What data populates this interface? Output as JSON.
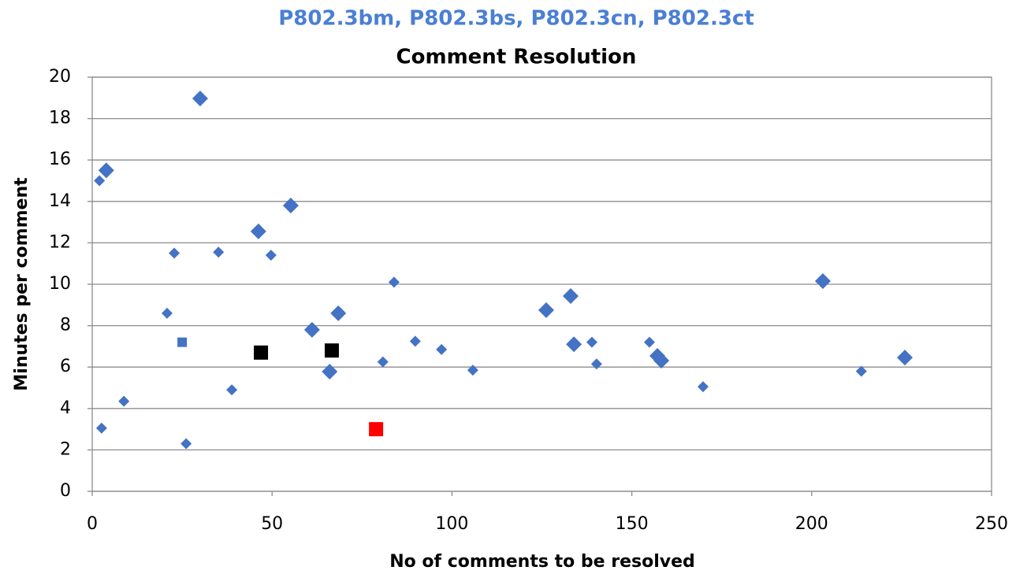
{
  "chart_data": {
    "type": "scatter",
    "supertitle": "P802.3bm, P802.3bs, P802.3cn, P802.3ct",
    "supertitle_color": "#4a7fd4",
    "title": "Comment Resolution",
    "xlabel": "No of comments to be resolved",
    "ylabel": "Minutes per comment",
    "xlim": [
      0,
      250
    ],
    "xticks": [
      0,
      50,
      100,
      150,
      200,
      250
    ],
    "ylim": [
      0,
      20
    ],
    "yticks": [
      0,
      2,
      4,
      6,
      8,
      10,
      12,
      14,
      16,
      18,
      20
    ],
    "grid": true,
    "series": [
      {
        "color": "#4472c4",
        "marker": "diamond",
        "marker_size": 10,
        "x": [
          30.0,
          3.9,
          55.2,
          46.2,
          61.1,
          68.4,
          66.0,
          126.2,
          133.0,
          133.9,
          157.1,
          158.2,
          203.1,
          225.9
        ],
        "values": [
          18.97,
          15.5,
          13.8,
          12.55,
          7.8,
          8.6,
          5.78,
          8.75,
          9.43,
          7.1,
          6.54,
          6.31,
          10.15,
          6.46
        ]
      },
      {
        "color": "#4472c4",
        "marker": "diamond",
        "marker_size": 7,
        "x": [
          2.0,
          22.8,
          35.1,
          49.7,
          83.9,
          20.8,
          89.8,
          97.1,
          80.8,
          105.8,
          138.9,
          154.9,
          140.2,
          169.8,
          213.8,
          38.8,
          8.8,
          2.6,
          26.1
        ],
        "values": [
          15.0,
          11.5,
          11.55,
          11.4,
          10.1,
          8.6,
          7.25,
          6.85,
          6.25,
          5.85,
          7.2,
          7.2,
          6.15,
          5.05,
          5.8,
          4.9,
          4.35,
          3.05,
          2.3
        ]
      },
      {
        "color": "#4472c4",
        "marker": "square",
        "marker_size": 6,
        "x": [
          25.0
        ],
        "values": [
          7.2
        ]
      },
      {
        "color": "#000000",
        "marker": "square",
        "marker_size": 9,
        "x": [
          46.9,
          66.6
        ],
        "values": [
          6.7,
          6.8
        ]
      },
      {
        "color": "#ff0000",
        "marker": "square",
        "marker_size": 9,
        "x": [
          78.9
        ],
        "values": [
          3.0
        ]
      }
    ]
  }
}
